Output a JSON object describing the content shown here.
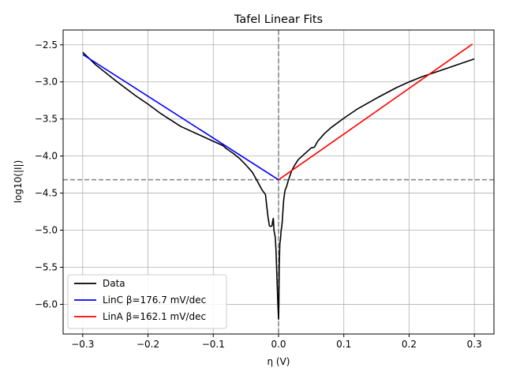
{
  "chart_data": {
    "type": "line",
    "title": "Tafel Linear Fits",
    "xlabel": "η (V)",
    "ylabel": "log10(|I|)",
    "xlim": [
      -0.33,
      0.33
    ],
    "ylim": [
      -6.4,
      -2.3
    ],
    "x_ticks": [
      -0.3,
      -0.2,
      -0.1,
      0.0,
      0.1,
      0.2,
      0.3
    ],
    "x_tick_labels": [
      "−0.3",
      "−0.2",
      "−0.1",
      "0.0",
      "0.1",
      "0.2",
      "0.3"
    ],
    "y_ticks": [
      -6.0,
      -5.5,
      -5.0,
      -4.5,
      -4.0,
      -3.5,
      -3.0,
      -2.5
    ],
    "y_tick_labels": [
      "−6.0",
      "−5.5",
      "−5.0",
      "−4.5",
      "−4.0",
      "−3.5",
      "−3.0",
      "−2.5"
    ],
    "grid": true,
    "legend_position": "lower-left",
    "reference_lines": {
      "vertical_x": 0.0,
      "horizontal_y": -4.32,
      "color": "#808080",
      "style": "dashed"
    },
    "series": [
      {
        "name": "Data",
        "color": "#000000",
        "x": [
          -0.3,
          -0.28,
          -0.25,
          -0.22,
          -0.2,
          -0.18,
          -0.15,
          -0.12,
          -0.1,
          -0.09,
          -0.085,
          -0.08,
          -0.07,
          -0.06,
          -0.05,
          -0.04,
          -0.035,
          -0.03,
          -0.025,
          -0.02,
          -0.018,
          -0.016,
          -0.014,
          -0.012,
          -0.01,
          -0.009,
          -0.008,
          -0.007,
          -0.006,
          -0.005,
          -0.004,
          -0.003,
          -0.002,
          -0.001,
          0.0,
          0.0005,
          0.001,
          0.002,
          0.003,
          0.004,
          0.005,
          0.006,
          0.007,
          0.008,
          0.01,
          0.012,
          0.015,
          0.02,
          0.025,
          0.03,
          0.04,
          0.05,
          0.055,
          0.06,
          0.07,
          0.08,
          0.1,
          0.12,
          0.15,
          0.18,
          0.2,
          0.22,
          0.25,
          0.28,
          0.3
        ],
        "y": [
          -2.6,
          -2.77,
          -2.98,
          -3.18,
          -3.3,
          -3.43,
          -3.6,
          -3.72,
          -3.8,
          -3.84,
          -3.86,
          -3.9,
          -3.96,
          -4.03,
          -4.12,
          -4.22,
          -4.3,
          -4.38,
          -4.46,
          -4.52,
          -4.68,
          -4.83,
          -4.94,
          -4.95,
          -4.94,
          -4.88,
          -4.84,
          -5.0,
          -5.05,
          -5.1,
          -5.25,
          -5.5,
          -5.75,
          -6.0,
          -6.2,
          -6.0,
          -5.5,
          -5.18,
          -5.12,
          -5.0,
          -4.95,
          -4.85,
          -4.7,
          -4.58,
          -4.46,
          -4.42,
          -4.33,
          -4.2,
          -4.12,
          -4.05,
          -3.97,
          -3.89,
          -3.88,
          -3.8,
          -3.7,
          -3.62,
          -3.49,
          -3.37,
          -3.22,
          -3.08,
          -3.0,
          -2.93,
          -2.84,
          -2.75,
          -2.69
        ]
      },
      {
        "name": "LinC β=176.7 mV/dec",
        "color": "#0000ff",
        "x": [
          -0.3,
          0.0
        ],
        "y": [
          -2.63,
          -4.32
        ]
      },
      {
        "name": "LinA β=162.1 mV/dec",
        "color": "#ff0000",
        "x": [
          0.0,
          0.297
        ],
        "y": [
          -4.32,
          -2.49
        ]
      }
    ]
  }
}
